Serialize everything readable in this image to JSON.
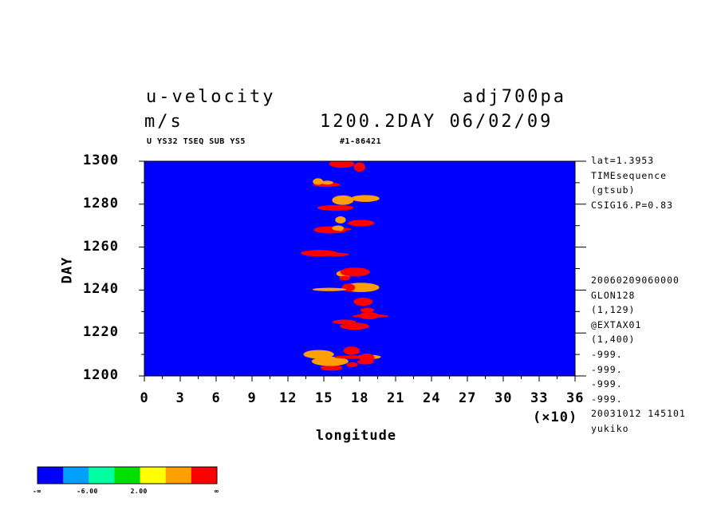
{
  "header": {
    "title_left": "u-velocity",
    "title_right": "adj700pa",
    "units": "m/s",
    "time_label": "1200.2DAY 06/02/09",
    "sub_left": "U YS32 TSEQ SUB YS5",
    "sub_right": "#1-86421"
  },
  "side_info": {
    "top": [
      "lat=1.3953",
      "TIMEsequence",
      "(gtsub)",
      "CSIG16.P=0.83"
    ],
    "bottom": [
      "20060209060000",
      "GLON128",
      "(1,129)",
      "@EXTAX01",
      "(1,400)",
      "-999.",
      "-999.",
      "-999.",
      "-999.",
      "20031012 145101",
      "yukiko"
    ]
  },
  "chart_data": {
    "type": "heatmap",
    "title": "u-velocity",
    "xlabel": "longitude",
    "x_multiplier": "(×10)",
    "ylabel": "DAY",
    "xlim": [
      0,
      36
    ],
    "ylim": [
      1200,
      1300
    ],
    "x_ticks": [
      "0",
      "3",
      "6",
      "9",
      "12",
      "15",
      "18",
      "21",
      "24",
      "27",
      "30",
      "33",
      "36"
    ],
    "y_ticks": [
      "1200",
      "1220",
      "1240",
      "1260",
      "1280",
      "1300"
    ],
    "colorbar": {
      "colors": [
        "#0000ff",
        "#00a0ff",
        "#00ffa0",
        "#00e000",
        "#ffff00",
        "#ffa000",
        "#ff0000"
      ],
      "labels": [
        "-∞",
        "-6.00",
        "2.00",
        "∞"
      ]
    }
  }
}
